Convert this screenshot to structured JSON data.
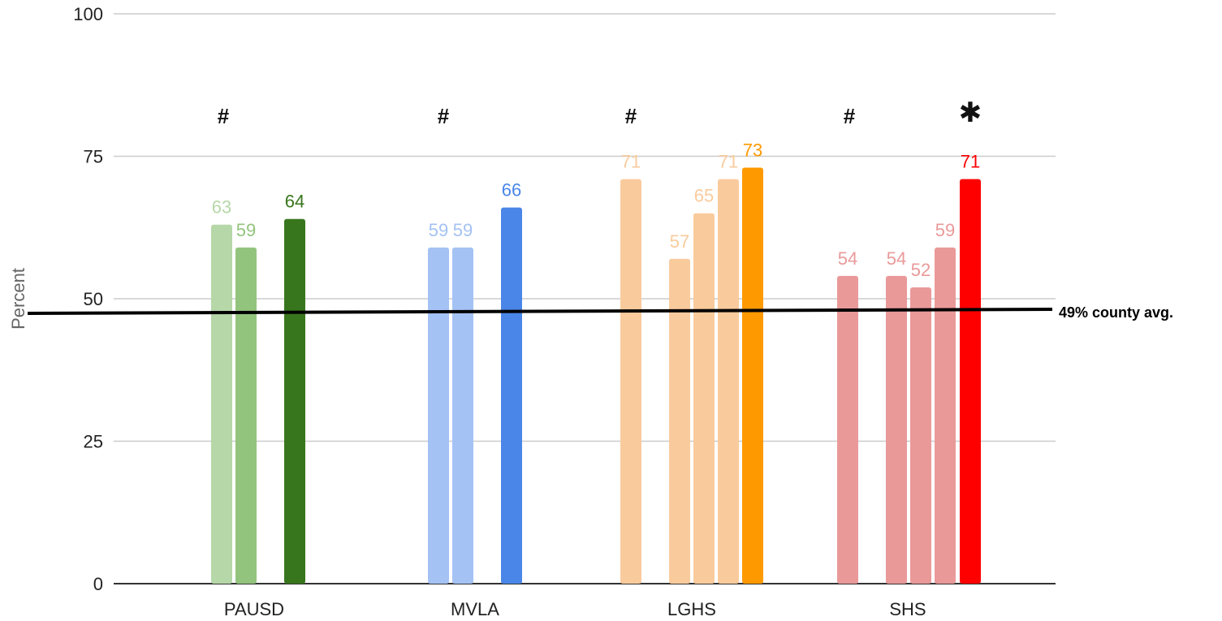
{
  "chart_data": {
    "type": "bar",
    "ylabel": "Percent",
    "ylim": [
      0,
      100
    ],
    "yticks": [
      0,
      25,
      50,
      75,
      100
    ],
    "grid": true,
    "categories": [
      {
        "name": "PAUSD",
        "marker": "#",
        "bars": [
          {
            "value": 63,
            "label": "63",
            "color": "#b6d7a8",
            "label_color": "#b6d7a8",
            "bold": false
          },
          {
            "value": 59,
            "label": "59",
            "color": "#93c47d",
            "label_color": "#93c47d",
            "bold": false
          },
          {
            "value": 64,
            "label": "64",
            "color": "#38761d",
            "label_color": "#38761d",
            "bold": false
          }
        ]
      },
      {
        "name": "MVLA",
        "marker": "#",
        "bars": [
          {
            "value": 59,
            "label": "59",
            "color": "#a4c2f4",
            "label_color": "#a4c2f4",
            "bold": false
          },
          {
            "value": 59,
            "label": "59",
            "color": "#a4c2f4",
            "label_color": "#a4c2f4",
            "bold": false
          },
          {
            "value": 66,
            "label": "66",
            "color": "#4a86e8",
            "label_color": "#4a86e8",
            "bold": false
          }
        ]
      },
      {
        "name": "LGHS",
        "marker": "#",
        "bars": [
          {
            "value": 71,
            "label": "71",
            "color": "#f9cb9c",
            "label_color": "#f9cb9c",
            "bold": false
          },
          {
            "value": 57,
            "label": "57",
            "color": "#f9cb9c",
            "label_color": "#f9cb9c",
            "bold": false
          },
          {
            "value": 65,
            "label": "65",
            "color": "#f9cb9c",
            "label_color": "#f9cb9c",
            "bold": false
          },
          {
            "value": 71,
            "label": "71",
            "color": "#f9cb9c",
            "label_color": "#f9cb9c",
            "bold": false
          },
          {
            "value": 73,
            "label": "73",
            "color": "#ff9900",
            "label_color": "#ff9900",
            "bold": false
          }
        ]
      },
      {
        "name": "SHS",
        "marker": "#",
        "bars": [
          {
            "value": 54,
            "label": "54",
            "color": "#ea9999",
            "label_color": "#ea9999",
            "bold": false
          },
          {
            "value": 54,
            "label": "54",
            "color": "#ea9999",
            "label_color": "#ea9999",
            "bold": false
          },
          {
            "value": 52,
            "label": "52",
            "color": "#ea9999",
            "label_color": "#ea9999",
            "bold": false
          },
          {
            "value": 59,
            "label": "59",
            "color": "#ea9999",
            "label_color": "#ea9999",
            "bold": false
          },
          {
            "value": 71,
            "label": "71",
            "color": "#ff0000",
            "label_color": "#ff0000",
            "bold": false
          }
        ],
        "extra_marker": "✱"
      }
    ],
    "reference_line": {
      "value": 49,
      "label": "49% county avg.",
      "color": "#000000"
    }
  }
}
